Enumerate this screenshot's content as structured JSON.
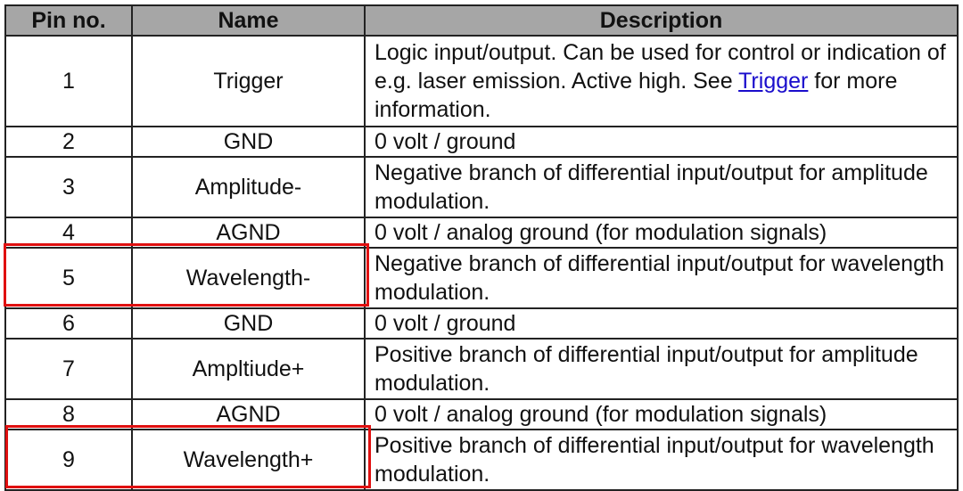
{
  "table": {
    "headers": [
      "Pin no.",
      "Name",
      "Description"
    ],
    "rows": [
      {
        "pin": "1",
        "name": "Trigger",
        "desc_pre": "Logic input/output. Can be used for control or indication of e.g. laser emission. Active high. See ",
        "link": "Trigger",
        "desc_post": " for more information."
      },
      {
        "pin": "2",
        "name": "GND",
        "desc": "0 volt / ground"
      },
      {
        "pin": "3",
        "name": "Amplitude-",
        "desc": "Negative branch of differential input/output for amplitude modulation."
      },
      {
        "pin": "4",
        "name": "AGND",
        "desc": "0 volt / analog ground (for modulation signals)"
      },
      {
        "pin": "5",
        "name": "Wavelength-",
        "desc": "Negative branch of differential input/output for wavelength modulation.",
        "highlighted": true
      },
      {
        "pin": "6",
        "name": "GND",
        "desc": "0 volt / ground"
      },
      {
        "pin": "7",
        "name": "Ampltiude+",
        "desc": "Positive branch of differential input/output for amplitude modulation."
      },
      {
        "pin": "8",
        "name": "AGND",
        "desc": "0 volt / analog ground (for modulation signals)"
      },
      {
        "pin": "9",
        "name": "Wavelength+",
        "desc": "Positive branch of differential input/output for wavelength modulation.",
        "highlighted": true
      }
    ]
  },
  "colors": {
    "header_bg": "#a6a6a6",
    "highlight": "#e01010",
    "link": "#1a0dcc"
  }
}
